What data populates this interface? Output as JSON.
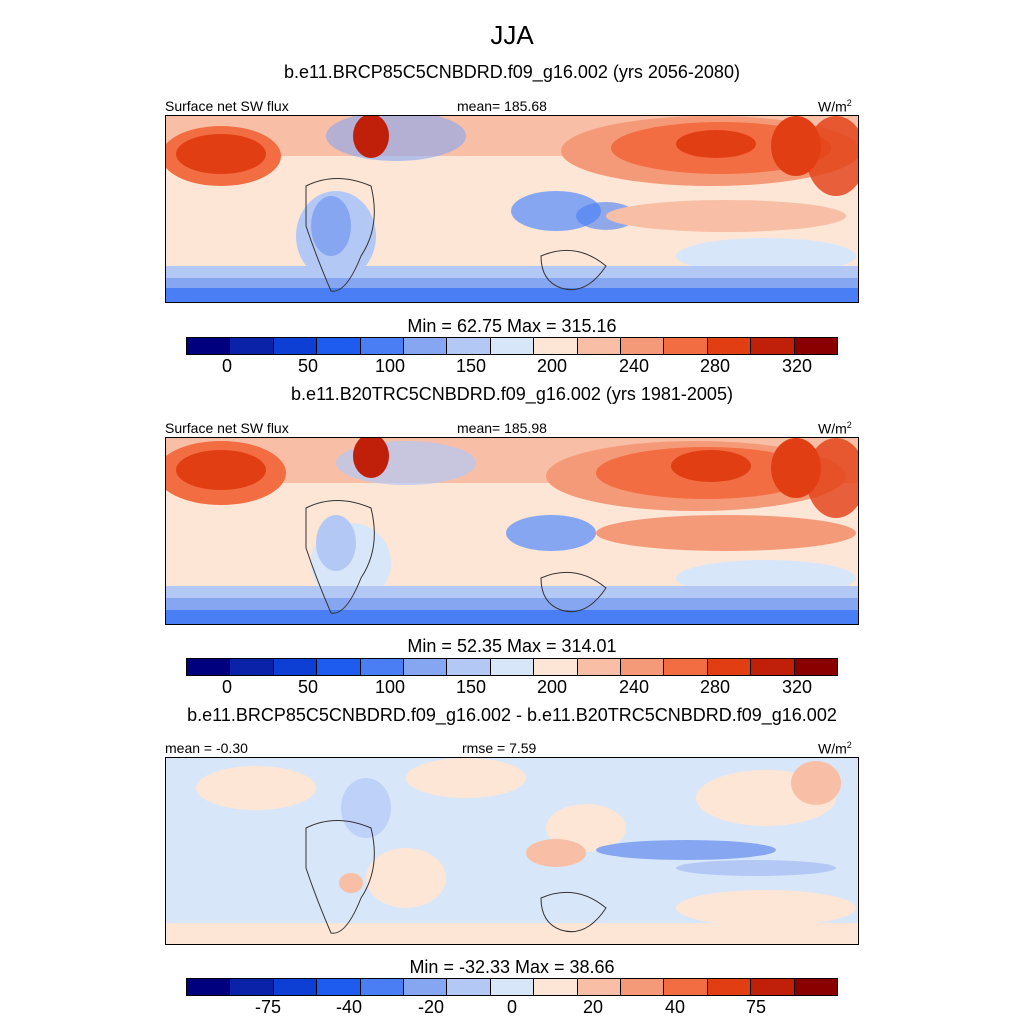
{
  "title": "JJA",
  "panels": [
    {
      "subtitle": "b.e11.BRCP85C5CNBDRD.f09_g16.002 (yrs 2056-2080)",
      "left_label": "Surface net SW flux",
      "center_label": "mean= 185.68",
      "units": "W/m",
      "units_sup": "2",
      "minmax": "Min =  62.75 Max = 315.16",
      "colorbar_labels": [
        "0",
        "50",
        "100",
        "150",
        "200",
        "240",
        "280",
        "320"
      ]
    },
    {
      "subtitle": "b.e11.B20TRC5CNBDRD.f09_g16.002 (yrs 1981-2005)",
      "left_label": "Surface net SW flux",
      "center_label": "mean= 185.98",
      "units": "W/m",
      "units_sup": "2",
      "minmax": "Min =  52.35 Max = 314.01",
      "colorbar_labels": [
        "0",
        "50",
        "100",
        "150",
        "200",
        "240",
        "280",
        "320"
      ]
    },
    {
      "subtitle": "b.e11.BRCP85C5CNBDRD.f09_g16.002 - b.e11.B20TRC5CNBDRD.f09_g16.002",
      "left_label": "mean =  -0.30",
      "center_label": "rmse =   7.59",
      "units": "W/m",
      "units_sup": "2",
      "minmax": "Min = -32.33 Max =  38.66",
      "colorbar_labels": [
        "-75",
        "-40",
        "-20",
        "0",
        "20",
        "40",
        "75"
      ]
    }
  ],
  "colors": {
    "palette": [
      "#00007f",
      "#0a22a8",
      "#0e3fd4",
      "#1e5cf0",
      "#4a7ef4",
      "#86a6f2",
      "#b4c8f6",
      "#d8e6fa",
      "#fde6d6",
      "#f8bfa6",
      "#f59a78",
      "#f36d42",
      "#e23e14",
      "#c01f0a",
      "#8a0000"
    ],
    "land_line": "#333333"
  }
}
